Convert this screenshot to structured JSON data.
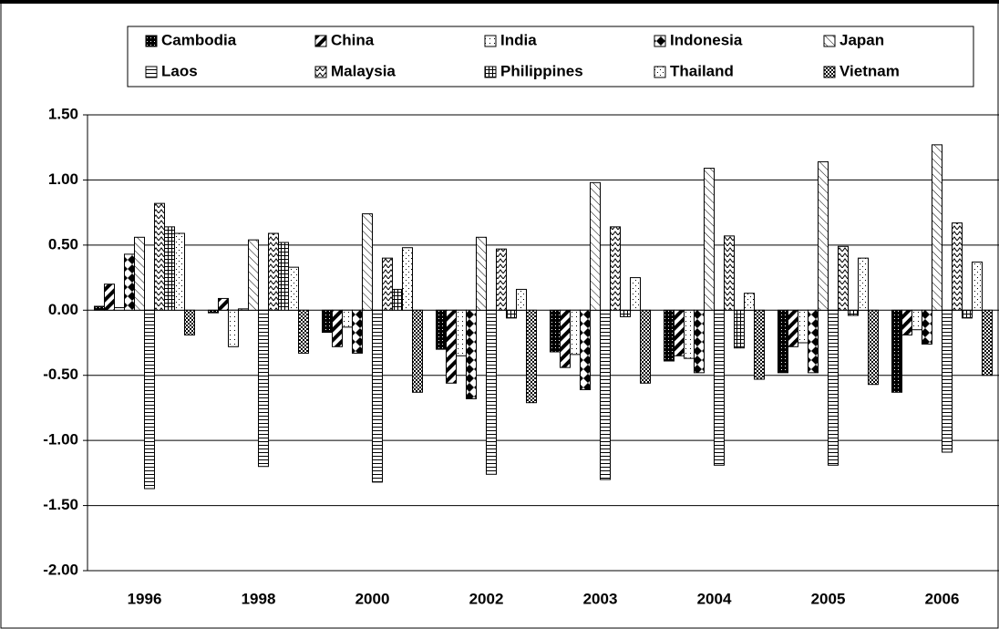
{
  "chart_data": {
    "type": "bar",
    "categories": [
      "1996",
      "1998",
      "2000",
      "2002",
      "2003",
      "2004",
      "2005",
      "2006"
    ],
    "series": [
      {
        "name": "Cambodia",
        "color": "#000000",
        "values": [
          0.03,
          -0.02,
          -0.17,
          -0.3,
          -0.32,
          -0.39,
          -0.48,
          -0.63
        ]
      },
      {
        "name": "China",
        "color": "#000000",
        "values": [
          0.2,
          0.09,
          -0.28,
          -0.56,
          -0.44,
          -0.35,
          -0.28,
          -0.19
        ]
      },
      {
        "name": "India",
        "color": "#000000",
        "values": [
          0.02,
          -0.28,
          -0.13,
          -0.35,
          -0.34,
          -0.37,
          -0.25,
          -0.15
        ]
      },
      {
        "name": "Indonesia",
        "color": "#000000",
        "values": [
          0.43,
          0.01,
          -0.33,
          -0.68,
          -0.61,
          -0.48,
          -0.48,
          -0.26
        ]
      },
      {
        "name": "Japan",
        "color": "#000000",
        "values": [
          0.56,
          0.54,
          0.74,
          0.56,
          0.98,
          1.09,
          1.14,
          1.27
        ]
      },
      {
        "name": "Laos",
        "color": "#000000",
        "values": [
          -1.37,
          -1.2,
          -1.32,
          -1.26,
          -1.3,
          -1.19,
          -1.19,
          -1.09
        ]
      },
      {
        "name": "Malaysia",
        "color": "#000000",
        "values": [
          0.82,
          0.59,
          0.4,
          0.47,
          0.64,
          0.57,
          0.49,
          0.67
        ]
      },
      {
        "name": "Philippines",
        "color": "#000000",
        "values": [
          0.64,
          0.52,
          0.16,
          -0.06,
          -0.05,
          -0.29,
          -0.04,
          -0.06
        ]
      },
      {
        "name": "Thailand",
        "color": "#000000",
        "values": [
          0.59,
          0.33,
          0.48,
          0.16,
          0.25,
          0.13,
          0.4,
          0.37
        ]
      },
      {
        "name": "Vietnam",
        "color": "#000000",
        "values": [
          -0.19,
          -0.33,
          -0.63,
          -0.71,
          -0.56,
          -0.53,
          -0.57,
          -0.5
        ]
      }
    ],
    "ylim": [
      -2,
      1.5
    ],
    "yticks": [
      {
        "value": -2,
        "label": "-2.00"
      },
      {
        "value": -1.5,
        "label": "-1.50"
      },
      {
        "value": -1,
        "label": "-1.00"
      },
      {
        "value": -0.5,
        "label": "-0.50"
      },
      {
        "value": 0,
        "label": "0.00"
      },
      {
        "value": 0.5,
        "label": "0.50"
      },
      {
        "value": 1,
        "label": "1.00"
      },
      {
        "value": 1.5,
        "label": "1.50"
      }
    ],
    "grid": true,
    "legend": "top"
  }
}
